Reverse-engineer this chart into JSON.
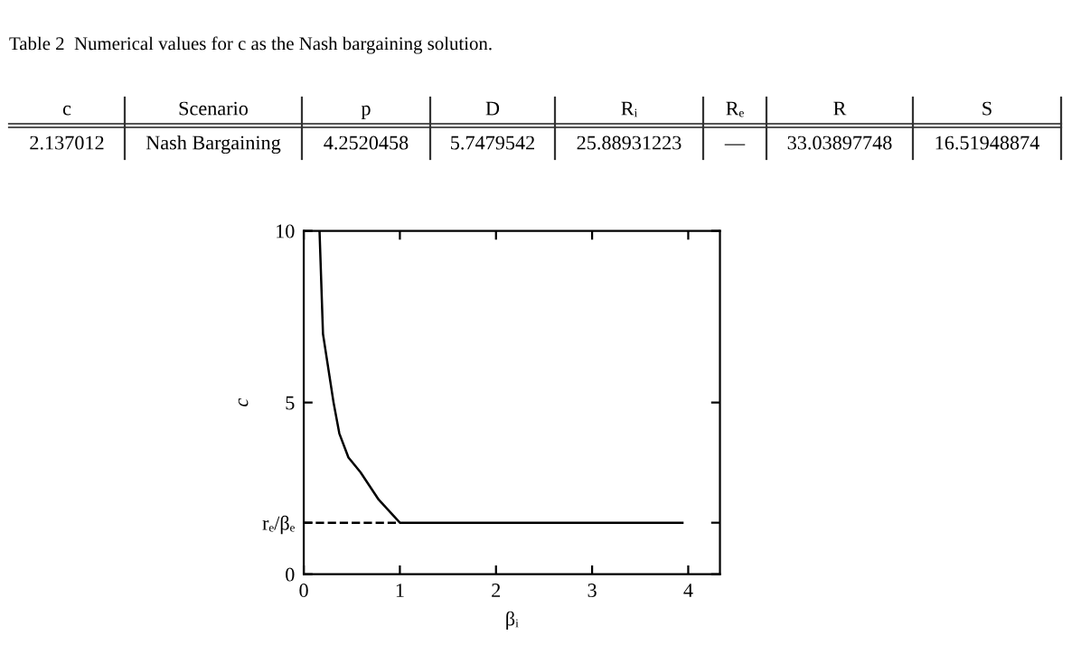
{
  "chart_data": [
    {
      "type": "other",
      "title": "Table 2  Numerical values for c as the Nash bargaining solution.",
      "categories": [
        "c",
        "Scenario",
        "p",
        "D",
        "Rᵢ",
        "Rₑ",
        "R",
        "S"
      ],
      "annotations": [
        "2.137012",
        "Nash Bargaining",
        "4.2520458",
        "5.7479542",
        "25.88931223",
        "—",
        "33.03897748",
        "16.51948874"
      ]
    },
    {
      "type": "line",
      "xlabel": "βᵢ",
      "ylabel": "c",
      "xlim": [
        0,
        4.33
      ],
      "ylim": [
        0,
        10
      ],
      "xticks": [
        0,
        1,
        2,
        3,
        4
      ],
      "yticks": [
        0,
        {
          "value": 1.5,
          "label": "rₑ/βₑ"
        },
        5,
        10
      ],
      "grid": false,
      "marker": "none",
      "series": [
        {
          "color": "#000000",
          "line_style": "solid",
          "x": [
            0.164,
            0.2,
            0.31,
            0.37,
            0.465,
            0.59,
            0.78,
            1,
            3.94
          ],
          "values": [
            10,
            7,
            5,
            4.1,
            3.4,
            2.97,
            2.17,
            1.5,
            1.5
          ]
        },
        {
          "color": "#000000",
          "line_style": "dashed",
          "x": [
            0,
            1
          ],
          "values": [
            1.5,
            1.5
          ]
        }
      ]
    }
  ]
}
